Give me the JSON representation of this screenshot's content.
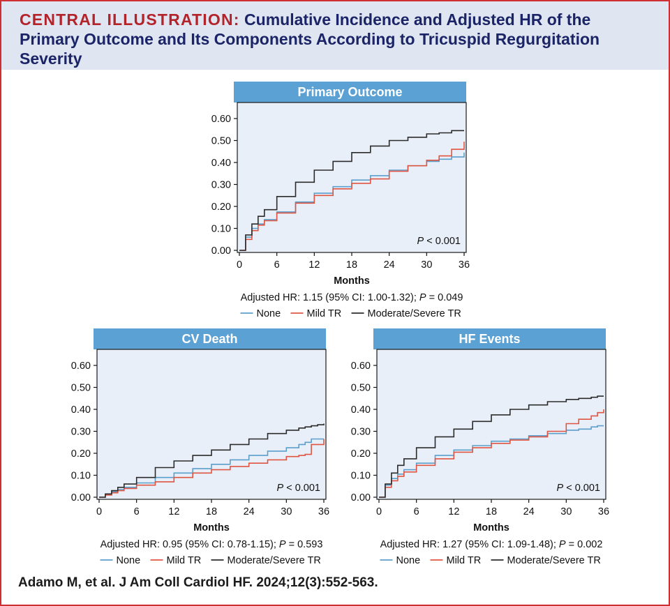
{
  "header": {
    "lead": "CENTRAL ILLUSTRATION:",
    "rest": " Cumulative Incidence and Adjusted HR of the Primary Outcome and Its Components According to Tricuspid Regurgitation Severity"
  },
  "citation": "Adamo M, et al. J Am Coll Cardiol HF. 2024;12(3):552-563.",
  "legend": [
    "None",
    "Mild TR",
    "Moderate/Severe TR"
  ],
  "colors": {
    "none": "#5b9fcc",
    "mild": "#e05542",
    "modsev": "#2b2b2b",
    "strip": "#5ba1d4",
    "plot_bg": "#e9eff8"
  },
  "chart_data": [
    {
      "type": "line",
      "title": "Primary Outcome",
      "xlabel": "Months",
      "ylabel": "",
      "xlim": [
        0,
        36
      ],
      "ylim": [
        0,
        0.6
      ],
      "xticks": [
        "0",
        "6",
        "12",
        "18",
        "24",
        "30",
        "36"
      ],
      "yticks": [
        "0.00",
        "0.10",
        "0.20",
        "0.30",
        "0.40",
        "0.50",
        "0.60"
      ],
      "pvalue": "< 0.001",
      "hr": {
        "pre": "Adjusted HR: 1.15 (95% CI: 1.00-1.32); ",
        "italic": "P",
        "post": " = 0.049"
      },
      "step": "post",
      "x": [
        0,
        1,
        2,
        3,
        4,
        6,
        9,
        12,
        15,
        18,
        21,
        24,
        27,
        30,
        32,
        34,
        36
      ],
      "series": [
        {
          "name": "None",
          "values": [
            0,
            0.06,
            0.1,
            0.12,
            0.14,
            0.175,
            0.22,
            0.26,
            0.29,
            0.32,
            0.34,
            0.365,
            0.385,
            0.405,
            0.415,
            0.425,
            0.445
          ]
        },
        {
          "name": "Mild TR",
          "values": [
            0,
            0.05,
            0.09,
            0.115,
            0.135,
            0.17,
            0.215,
            0.25,
            0.28,
            0.305,
            0.325,
            0.36,
            0.385,
            0.41,
            0.43,
            0.46,
            0.495
          ]
        },
        {
          "name": "Moderate/Severe TR",
          "values": [
            0,
            0.07,
            0.12,
            0.155,
            0.185,
            0.245,
            0.31,
            0.365,
            0.405,
            0.445,
            0.475,
            0.5,
            0.515,
            0.53,
            0.535,
            0.545,
            0.545
          ]
        }
      ]
    },
    {
      "type": "line",
      "title": "CV Death",
      "xlabel": "Months",
      "ylabel": "",
      "xlim": [
        0,
        36
      ],
      "ylim": [
        0,
        0.6
      ],
      "xticks": [
        "0",
        "6",
        "12",
        "18",
        "24",
        "30",
        "36"
      ],
      "yticks": [
        "0.00",
        "0.10",
        "0.20",
        "0.30",
        "0.40",
        "0.50",
        "0.60"
      ],
      "pvalue": "< 0.001",
      "hr": {
        "pre": "Adjusted HR: 0.95 (95% CI: 0.78-1.15); ",
        "italic": "P",
        "post": " = 0.593"
      },
      "step": "post",
      "x": [
        0,
        1,
        2,
        3,
        4,
        6,
        9,
        12,
        15,
        18,
        21,
        24,
        27,
        30,
        32,
        33,
        34,
        35,
        36
      ],
      "series": [
        {
          "name": "None",
          "values": [
            0,
            0.01,
            0.025,
            0.035,
            0.045,
            0.065,
            0.09,
            0.11,
            0.13,
            0.15,
            0.17,
            0.19,
            0.21,
            0.225,
            0.24,
            0.25,
            0.265,
            0.265,
            0.265
          ]
        },
        {
          "name": "Mild TR",
          "values": [
            0,
            0.01,
            0.02,
            0.03,
            0.04,
            0.055,
            0.07,
            0.09,
            0.11,
            0.125,
            0.14,
            0.155,
            0.17,
            0.185,
            0.19,
            0.195,
            0.24,
            0.24,
            0.265
          ]
        },
        {
          "name": "Moderate/Severe TR",
          "values": [
            0,
            0.015,
            0.03,
            0.045,
            0.06,
            0.09,
            0.135,
            0.165,
            0.19,
            0.215,
            0.24,
            0.265,
            0.29,
            0.305,
            0.315,
            0.32,
            0.325,
            0.33,
            0.335
          ]
        }
      ]
    },
    {
      "type": "line",
      "title": "HF Events",
      "xlabel": "Months",
      "ylabel": "",
      "xlim": [
        0,
        36
      ],
      "ylim": [
        0,
        0.6
      ],
      "xticks": [
        "0",
        "6",
        "12",
        "18",
        "24",
        "30",
        "36"
      ],
      "yticks": [
        "0.00",
        "0.10",
        "0.20",
        "0.30",
        "0.40",
        "0.50",
        "0.60"
      ],
      "pvalue": "< 0.001",
      "hr": {
        "pre": "Adjusted HR: 1.27 (95% CI: 1.09-1.48); ",
        "italic": "P",
        "post": " = 0.002"
      },
      "step": "post",
      "x": [
        0,
        1,
        2,
        3,
        4,
        6,
        9,
        12,
        15,
        18,
        21,
        24,
        27,
        30,
        32,
        34,
        35,
        36
      ],
      "series": [
        {
          "name": "None",
          "values": [
            0,
            0.055,
            0.085,
            0.105,
            0.125,
            0.155,
            0.19,
            0.215,
            0.235,
            0.255,
            0.265,
            0.28,
            0.29,
            0.305,
            0.31,
            0.32,
            0.325,
            0.325
          ]
        },
        {
          "name": "Mild TR",
          "values": [
            0,
            0.045,
            0.075,
            0.095,
            0.115,
            0.145,
            0.175,
            0.205,
            0.225,
            0.245,
            0.26,
            0.275,
            0.3,
            0.335,
            0.355,
            0.37,
            0.385,
            0.4
          ]
        },
        {
          "name": "Moderate/Severe TR",
          "values": [
            0,
            0.06,
            0.11,
            0.145,
            0.175,
            0.225,
            0.275,
            0.31,
            0.345,
            0.375,
            0.4,
            0.42,
            0.435,
            0.445,
            0.45,
            0.455,
            0.46,
            0.46
          ]
        }
      ]
    }
  ]
}
